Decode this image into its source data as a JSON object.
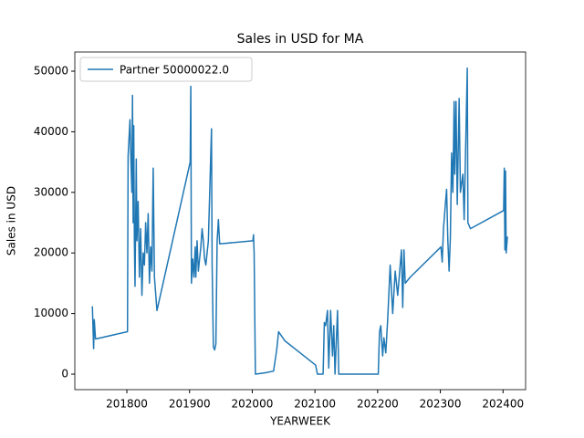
{
  "chart_data": {
    "type": "line",
    "title": "Sales in USD for MA",
    "x_label": "YEARWEEK",
    "y_label": "Sales in USD",
    "x": [
      201745,
      201747,
      201748,
      201750,
      201801,
      201802,
      201804,
      201805,
      201806,
      201808,
      201809,
      201810,
      201811,
      201812,
      201813,
      201815,
      201816,
      201818,
      201820,
      201822,
      201824,
      201826,
      201828,
      201830,
      201832,
      201834,
      201836,
      201838,
      201840,
      201842,
      201844,
      201848,
      201901,
      201902,
      201903,
      201905,
      201907,
      201909,
      201910,
      201912,
      201914,
      201916,
      201918,
      201920,
      201922,
      201924,
      201926,
      201930,
      201935,
      201936,
      201938,
      201940,
      201942,
      201944,
      201946,
      201948,
      202001,
      202002,
      202003,
      202005,
      202020,
      202034,
      202039,
      202042,
      202052,
      202101,
      202104,
      202113,
      202115,
      202117,
      202120,
      202122,
      202125,
      202128,
      202130,
      202132,
      202136,
      202138,
      202152,
      202201,
      202203,
      202205,
      202208,
      202210,
      202213,
      202216,
      202220,
      202224,
      202228,
      202232,
      202238,
      202240,
      202242,
      202244,
      202252,
      202301,
      202303,
      202305,
      202308,
      202310,
      202312,
      202314,
      202316,
      202318,
      202320,
      202322,
      202323,
      202325,
      202327,
      202330,
      202332,
      202336,
      202338,
      202343,
      202344,
      202348,
      202401,
      202402,
      202403,
      202404,
      202405,
      202407
    ],
    "series": [
      {
        "name": "Partner 50000022.0",
        "color": "#1f77b4",
        "values": [
          11200,
          4200,
          9000,
          5800,
          7000,
          36000,
          40000,
          42000,
          37000,
          30000,
          46000,
          25000,
          41000,
          22000,
          14500,
          35500,
          22000,
          28500,
          16000,
          24000,
          13000,
          20000,
          18000,
          25000,
          20000,
          26500,
          15000,
          21000,
          17000,
          34000,
          16000,
          10500,
          35000,
          47500,
          15000,
          19000,
          16000,
          21000,
          16000,
          22000,
          17000,
          19000,
          21000,
          24000,
          22000,
          19000,
          18000,
          22000,
          40500,
          18000,
          4500,
          4000,
          5000,
          22000,
          25500,
          21500,
          22000,
          23000,
          20000,
          0,
          200,
          500,
          4000,
          7000,
          5500,
          1500,
          0,
          0,
          8500,
          8000,
          10500,
          1000,
          10500,
          3000,
          8000,
          0,
          10500,
          0,
          0,
          0,
          7000,
          8000,
          3000,
          6000,
          3500,
          9000,
          18000,
          10000,
          17000,
          13000,
          20500,
          11000,
          20500,
          15000,
          16000,
          21000,
          18500,
          24000,
          28000,
          30500,
          22000,
          17000,
          22500,
          36500,
          30000,
          45000,
          33000,
          45000,
          28000,
          45500,
          30000,
          33000,
          25500,
          50500,
          25000,
          24000,
          27000,
          34000,
          20500,
          33500,
          20000,
          22700
        ]
      }
    ],
    "xlim": [
      201717,
      202436
    ],
    "ylim": [
      -2560,
      53163
    ],
    "xticks": [
      201800,
      201900,
      202000,
      202100,
      202200,
      202300,
      202400
    ],
    "yticks": [
      0,
      10000,
      20000,
      30000,
      40000,
      50000
    ],
    "legend": "upper left",
    "grid": false
  }
}
